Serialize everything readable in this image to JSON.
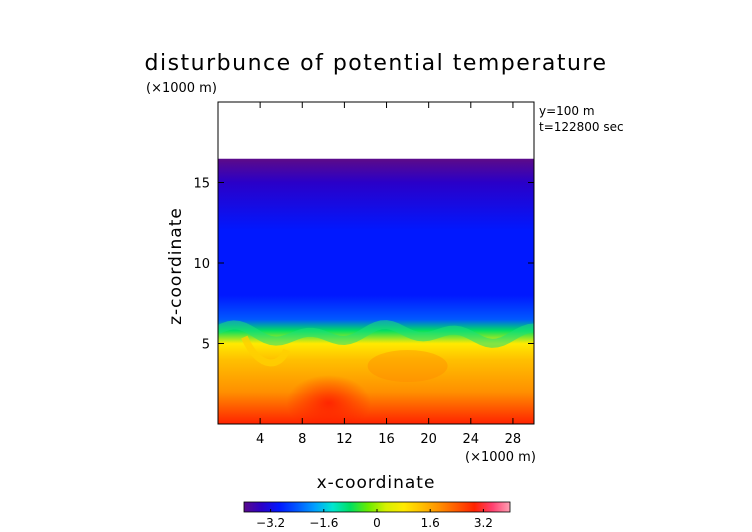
{
  "chart_data": {
    "type": "heatmap",
    "title": "disturbunce of potential temperature",
    "unit_label": "(×1000 m)",
    "xlabel": "x-coordinate",
    "ylabel": "z-coordinate",
    "x_unit_label": "(×1000 m)",
    "annotations": [
      "y=100 m",
      "t=122800 sec"
    ],
    "xlim": [
      0,
      30
    ],
    "ylim": [
      0,
      20
    ],
    "x_ticks": [
      4,
      8,
      12,
      16,
      20,
      24,
      28
    ],
    "y_ticks": [
      5,
      10,
      15
    ],
    "data_top_z": 16.4,
    "colorbar": {
      "range": [
        -4.0,
        4.0
      ],
      "tick_labels": [
        "−3.2",
        "−1.6",
        "0",
        "1.6",
        "3.2"
      ],
      "tick_values": [
        -3.2,
        -1.6,
        0,
        1.6,
        3.2
      ],
      "colors": [
        "#5a0a8c",
        "#2a00c8",
        "#0018ff",
        "#0058ff",
        "#00a0ff",
        "#00e6d0",
        "#00e060",
        "#6aec00",
        "#d6f000",
        "#ffea00",
        "#ffc000",
        "#ff9000",
        "#ff5a00",
        "#ff2200",
        "#ff4070",
        "#ffa0b4"
      ]
    },
    "field_description_points": {
      "z": [
        0,
        2,
        4,
        5,
        5.8,
        6.5,
        8,
        12,
        15,
        16.4
      ],
      "value": [
        2.8,
        2.0,
        1.4,
        0.6,
        -0.6,
        -2.2,
        -3.0,
        -3.1,
        -3.2,
        -3.8
      ]
    }
  }
}
